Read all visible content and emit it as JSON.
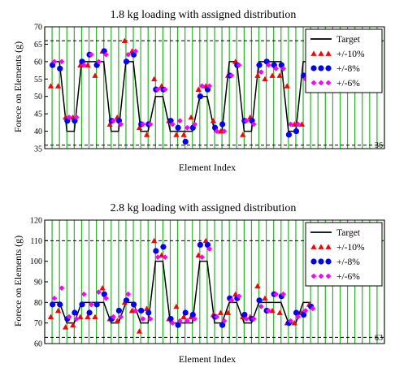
{
  "chart_data": [
    {
      "type": "line",
      "title": "1.8 kg loading with assigned distribution",
      "xlabel": "Element Index",
      "ylabel": "Forece on Elements (g)",
      "ylim": [
        35,
        70
      ],
      "ytick_values": [
        35,
        40,
        45,
        50,
        55,
        60,
        65,
        70
      ],
      "ytick_labels": [
        "35",
        "40",
        "45",
        "50",
        "55",
        "60",
        "65",
        "70"
      ],
      "reference_lines": [
        {
          "value": 66,
          "label": "66"
        },
        {
          "value": 36,
          "label": "36"
        }
      ],
      "grid": {
        "vertical": true,
        "horizontal": false,
        "color": "#22bb22"
      },
      "legend_position": "top-right",
      "legend": [
        "Target",
        "+/-10%",
        "+/-8%",
        "+/-6%"
      ],
      "x_count": 47,
      "colors": {
        "target": "#000000",
        "ten": "#ff0000",
        "eight": "#0000ff",
        "six": "#ff00ff"
      },
      "series": [
        {
          "name": "Target",
          "kind": "step",
          "color": "#000000",
          "values": [
            60,
            60,
            40,
            40,
            60,
            60,
            60,
            60,
            40,
            40,
            60,
            60,
            40,
            40,
            50,
            50,
            40,
            40,
            40,
            40,
            50,
            50,
            40,
            40,
            60,
            60,
            40,
            40,
            60,
            60,
            60,
            60,
            40,
            40,
            60,
            60
          ]
        },
        {
          "name": "+/-10%",
          "kind": "triangle",
          "color": "#ff0000",
          "values": [
            53,
            53,
            44,
            44,
            59,
            59,
            56,
            63,
            42,
            44,
            66,
            63,
            41,
            39,
            55,
            53,
            43,
            39,
            39,
            44,
            52,
            53,
            43,
            40,
            56,
            60,
            39,
            44,
            56,
            55,
            56,
            56,
            53,
            42,
            42,
            55
          ]
        },
        {
          "name": "+/-8%",
          "kind": "circle",
          "color": "#0000ff",
          "values": [
            59,
            58,
            43,
            43,
            60,
            62,
            59,
            63,
            43,
            43,
            60,
            62,
            42,
            42,
            52,
            52,
            43,
            41,
            37,
            41,
            50,
            52,
            41,
            42,
            56,
            59,
            43,
            43,
            59,
            60,
            59,
            59,
            39,
            40,
            56,
            55
          ]
        },
        {
          "name": "+/-6%",
          "kind": "diamond",
          "color": "#ff00ff",
          "values": [
            60,
            60,
            44,
            44,
            59,
            62,
            60,
            62,
            43,
            42,
            62,
            63,
            42,
            42,
            52,
            52,
            42,
            43,
            41,
            42,
            53,
            53,
            40,
            40,
            56,
            59,
            43,
            42,
            57,
            59,
            58,
            58,
            42,
            42,
            55,
            56
          ]
        }
      ]
    },
    {
      "type": "line",
      "title": "2.8 kg loading with assigned distribution",
      "xlabel": "Element Index",
      "ylabel": "Forece on Elements (g)",
      "ylim": [
        60,
        120
      ],
      "ytick_values": [
        60,
        70,
        80,
        90,
        100,
        110,
        120
      ],
      "ytick_labels": [
        "60",
        "70",
        "80",
        "90",
        "100",
        "110",
        "120"
      ],
      "reference_lines": [
        {
          "value": 110,
          "label": "110"
        },
        {
          "value": 63,
          "label": "63"
        }
      ],
      "grid": {
        "vertical": true,
        "horizontal": false,
        "color": "#22bb22"
      },
      "legend_position": "top-right",
      "legend": [
        "Target",
        "+/-10%",
        "+/-8%",
        "+/-6%"
      ],
      "x_count": 47,
      "colors": {
        "target": "#000000",
        "ten": "#ff0000",
        "eight": "#0000ff",
        "six": "#ff00ff"
      },
      "series": [
        {
          "name": "Target",
          "kind": "step",
          "color": "#000000",
          "values": [
            80,
            80,
            70,
            70,
            80,
            80,
            80,
            80,
            70,
            70,
            80,
            80,
            70,
            70,
            100,
            100,
            70,
            70,
            70,
            70,
            100,
            100,
            70,
            70,
            80,
            80,
            70,
            70,
            80,
            80,
            80,
            80,
            70,
            70,
            80,
            80
          ]
        },
        {
          "name": "+/-10%",
          "kind": "triangle",
          "color": "#ff0000",
          "values": [
            73,
            76,
            68,
            69,
            73,
            73,
            73,
            87,
            72,
            71,
            80,
            76,
            66,
            77,
            110,
            103,
            72,
            78,
            73,
            73,
            103,
            110,
            74,
            75,
            75,
            84,
            73,
            73,
            88,
            82,
            76,
            75,
            70,
            70,
            75,
            79
          ]
        },
        {
          "name": "+/-8%",
          "kind": "circle",
          "color": "#0000ff",
          "values": [
            79,
            79,
            72,
            75,
            79,
            75,
            79,
            84,
            72,
            76,
            81,
            79,
            76,
            75,
            105,
            107,
            72,
            69,
            75,
            74,
            108,
            108,
            73,
            69,
            82,
            82,
            74,
            72,
            81,
            76,
            84,
            83,
            70,
            75,
            74,
            78
          ]
        },
        {
          "name": "+/-6%",
          "kind": "diamond",
          "color": "#ff00ff",
          "values": [
            82,
            87,
            73,
            72,
            84,
            79,
            85,
            82,
            73,
            73,
            84,
            76,
            72,
            72,
            102,
            102,
            70,
            71,
            71,
            72,
            102,
            106,
            73,
            71,
            81,
            83,
            72,
            72,
            78,
            76,
            84,
            84,
            71,
            73,
            76,
            77
          ]
        }
      ]
    }
  ]
}
